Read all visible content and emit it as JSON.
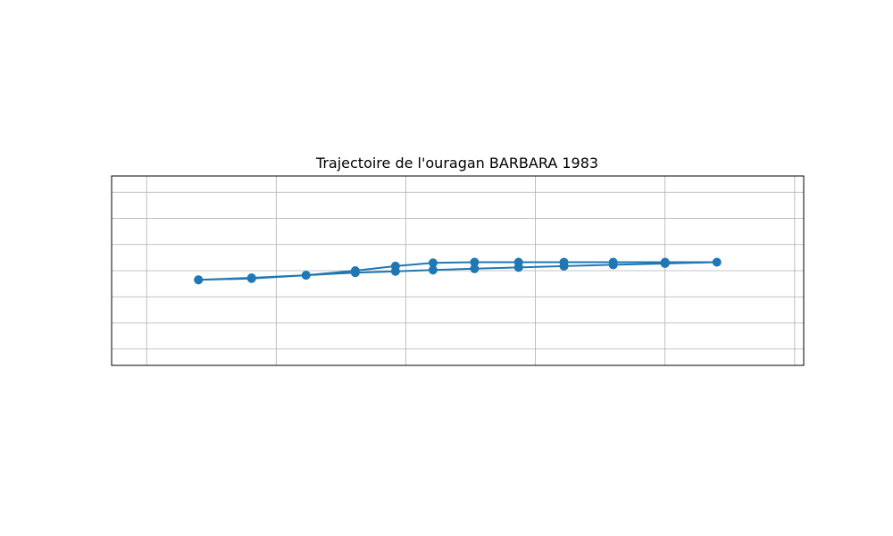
{
  "chart_data": {
    "type": "line",
    "title": "Trajectoire de l'ouragan BARBARA 1983",
    "xlabel": "",
    "ylabel": "",
    "xlim": [
      -1.35,
      25.35
    ],
    "ylim": [
      -7.25,
      7.25
    ],
    "grid": true,
    "x_grid": [
      0,
      5,
      10,
      15,
      20,
      25
    ],
    "y_grid": [
      -6,
      -4,
      -2,
      0,
      2,
      4,
      6
    ],
    "series": [
      {
        "color": "#1f77b4",
        "marker": "circle",
        "x": [
          2,
          4.05,
          6.15,
          8.05,
          9.6,
          11.05,
          12.65,
          14.35,
          16.1,
          18,
          20,
          22,
          20,
          18,
          16.1,
          14.35,
          12.65,
          11.05,
          9.6,
          8.05,
          6.15,
          4.05,
          2
        ],
        "y": [
          -0.7,
          -0.6,
          -0.35,
          0,
          0.35,
          0.6,
          0.65,
          0.65,
          0.65,
          0.65,
          0.65,
          0.65,
          0.55,
          0.45,
          0.35,
          0.25,
          0.15,
          0.05,
          -0.05,
          -0.15,
          -0.35,
          -0.55,
          -0.7
        ]
      }
    ]
  }
}
